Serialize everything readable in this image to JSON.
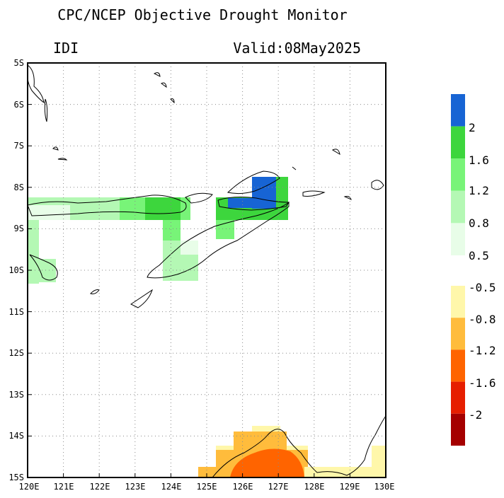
{
  "title": "CPC/NCEP Objective Drought Monitor",
  "index_name": "IDI",
  "valid_label": "Valid:08May2025",
  "map": {
    "lon_range": [
      120,
      130
    ],
    "lat_range": [
      -15,
      -5
    ],
    "lon_ticks": [
      "120E",
      "121E",
      "122E",
      "123E",
      "124E",
      "125E",
      "126E",
      "127E",
      "128E",
      "129E",
      "130E"
    ],
    "lat_ticks": [
      "5S",
      "6S",
      "7S",
      "8S",
      "9S",
      "10S",
      "11S",
      "12S",
      "13S",
      "14S",
      "15S"
    ],
    "grid": "dotted"
  },
  "legend_wet": {
    "labels": [
      "2",
      "1.6",
      "1.2",
      "0.8",
      "0.5"
    ],
    "colors": [
      "#1764d4",
      "#3dd63d",
      "#78f478",
      "#b4f8b4",
      "#e8fde8"
    ]
  },
  "legend_dry": {
    "labels": [
      "-0.5",
      "-0.8",
      "-1.2",
      "-1.6",
      "-2"
    ],
    "colors": [
      "#fff7aa",
      "#ffbc3c",
      "#ff6400",
      "#e61e00",
      "#a50000"
    ]
  }
}
